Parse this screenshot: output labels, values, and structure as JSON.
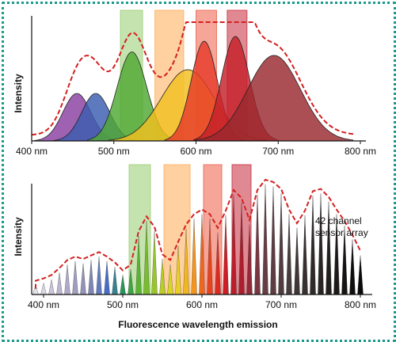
{
  "chart_data": [
    {
      "type": "area",
      "ylabel": "Intensity",
      "xlim": [
        400,
        800
      ],
      "xticks": [
        "400 nm",
        "500 nm",
        "600 nm",
        "700 nm",
        "800 nm"
      ],
      "filter_bands_nm": [
        [
          508,
          535
        ],
        [
          550,
          585
        ],
        [
          600,
          625
        ],
        [
          638,
          662
        ]
      ],
      "band_colors": [
        "#9ed07a",
        "#ffb060",
        "#ee6a55",
        "#cc3a4a"
      ],
      "emission_peaks": [
        {
          "center": 455,
          "height": 0.4,
          "color": "#8a3ea0"
        },
        {
          "center": 478,
          "height": 0.4,
          "color": "#3a5db0"
        },
        {
          "center": 522,
          "height": 0.75,
          "color": "#4fa832"
        },
        {
          "center": 590,
          "height": 0.6,
          "color": "#f2c020"
        },
        {
          "center": 610,
          "height": 0.84,
          "color": "#e63a2a"
        },
        {
          "center": 648,
          "height": 0.88,
          "color": "#c4202a"
        },
        {
          "center": 695,
          "height": 0.72,
          "color": "#98282e"
        }
      ],
      "envelope_color": "#d42020"
    },
    {
      "type": "bar",
      "ylabel": "Intensity",
      "xlabel": "Fluorescence wavelength emission",
      "xlim": [
        385,
        815
      ],
      "xticks": [
        "400 nm",
        "500 nm",
        "600 nm",
        "700 nm",
        "800 nm"
      ],
      "annotation": [
        "42 channel",
        "sensor array"
      ],
      "filter_bands_nm": [
        [
          508,
          535
        ],
        [
          552,
          585
        ],
        [
          602,
          625
        ],
        [
          638,
          662
        ]
      ],
      "band_colors": [
        "#9ed07a",
        "#ffb060",
        "#ee6a55",
        "#cc3a4a"
      ],
      "channel_count": 42,
      "channel_start_nm": 390,
      "channel_step_nm": 10,
      "channel_values": [
        0.08,
        0.1,
        0.13,
        0.19,
        0.26,
        0.29,
        0.27,
        0.3,
        0.33,
        0.29,
        0.24,
        0.17,
        0.22,
        0.51,
        0.64,
        0.55,
        0.31,
        0.26,
        0.42,
        0.57,
        0.66,
        0.7,
        0.66,
        0.54,
        0.69,
        0.87,
        0.8,
        0.61,
        0.87,
        0.96,
        0.94,
        0.88,
        0.7,
        0.58,
        0.69,
        0.86,
        0.88,
        0.81,
        0.7,
        0.6,
        0.48,
        0.34
      ],
      "envelope_color": "#d42020"
    }
  ]
}
